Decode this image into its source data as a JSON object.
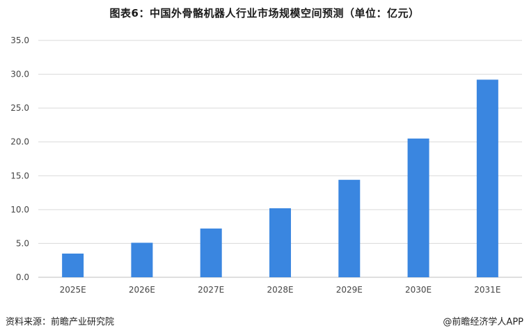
{
  "page": {
    "title": "图表6：中国外骨骼机器人行业市场规模空间预测（单位：亿元）",
    "source": "资料来源：前瞻产业研究院",
    "credit": "@前瞻经济学人APP"
  },
  "colors": {
    "bar": "#3a86e0",
    "grid": "#d9d9d9",
    "axis_text": "#444444"
  },
  "chart_data": {
    "type": "bar",
    "categories": [
      "2025E",
      "2026E",
      "2027E",
      "2028E",
      "2029E",
      "2030E",
      "2031E"
    ],
    "values": [
      3.5,
      5.1,
      7.2,
      10.2,
      14.4,
      20.5,
      29.2
    ],
    "yticks": [
      "0.0",
      "5.0",
      "10.0",
      "15.0",
      "20.0",
      "25.0",
      "30.0",
      "35.0"
    ],
    "ylim": [
      0,
      35
    ],
    "grid": true,
    "xlabel": "",
    "ylabel": ""
  }
}
